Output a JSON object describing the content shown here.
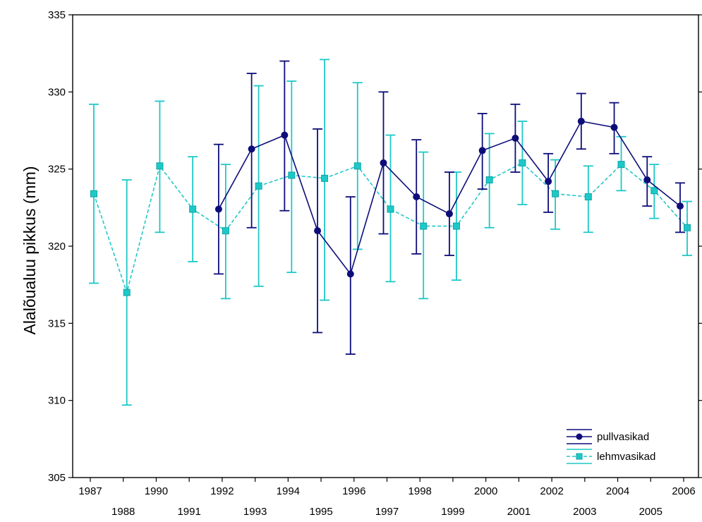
{
  "chart_data": {
    "type": "line",
    "title": "",
    "xlabel": "",
    "ylabel": "Alalõualuu pikkus (mm)",
    "ylim": [
      305,
      335
    ],
    "yticks": [
      305,
      310,
      315,
      320,
      325,
      330,
      335
    ],
    "grid": false,
    "legend_position": "bottom-right",
    "categories": [
      "1987",
      "1988",
      "1990",
      "1991",
      "1992",
      "1993",
      "1994",
      "1995",
      "1996",
      "1997",
      "1998",
      "1999",
      "2000",
      "2001",
      "2002",
      "2003",
      "2004",
      "2005",
      "2006"
    ],
    "tick_rows": {
      "top": [
        "1987",
        "1990",
        "1992",
        "1994",
        "1996",
        "1998",
        "2000",
        "2002",
        "2004",
        "2006"
      ],
      "bottom": [
        "1988",
        "1991",
        "1993",
        "1995",
        "1997",
        "1999",
        "2001",
        "2003",
        "2005"
      ]
    },
    "series": [
      {
        "name": "pullvasikad",
        "color": "#0d0d7a",
        "line_style": "solid",
        "marker": "circle",
        "values": [
          null,
          null,
          null,
          null,
          322.4,
          326.3,
          327.2,
          321.0,
          318.2,
          325.4,
          323.2,
          322.1,
          326.2,
          327.0,
          324.2,
          328.1,
          327.7,
          324.3,
          322.6
        ],
        "lower": [
          null,
          null,
          null,
          null,
          318.2,
          321.2,
          322.3,
          314.4,
          313.0,
          320.8,
          319.5,
          319.4,
          323.7,
          324.8,
          322.2,
          326.3,
          326.0,
          322.6,
          320.9
        ],
        "upper": [
          null,
          null,
          null,
          null,
          326.6,
          331.2,
          332.0,
          327.6,
          323.2,
          330.0,
          326.9,
          324.8,
          328.6,
          329.2,
          326.0,
          329.9,
          329.3,
          325.8,
          324.1
        ]
      },
      {
        "name": "lehmvasikad",
        "color": "#1ec8c8",
        "line_style": "dashed",
        "marker": "square",
        "values": [
          323.4,
          317.0,
          325.2,
          322.4,
          321.0,
          323.9,
          324.6,
          324.4,
          325.2,
          322.4,
          321.3,
          321.3,
          324.3,
          325.4,
          323.4,
          323.2,
          325.3,
          323.6,
          321.2
        ],
        "lower": [
          317.6,
          309.7,
          320.9,
          319.0,
          316.6,
          317.4,
          318.3,
          316.5,
          319.8,
          317.7,
          316.6,
          317.8,
          321.2,
          322.7,
          321.1,
          320.9,
          323.6,
          321.8,
          319.4
        ],
        "upper": [
          329.2,
          324.3,
          329.4,
          325.8,
          325.3,
          330.4,
          330.7,
          332.1,
          330.6,
          327.2,
          326.1,
          324.8,
          327.3,
          328.1,
          325.6,
          325.2,
          327.1,
          325.3,
          322.9
        ]
      }
    ]
  }
}
